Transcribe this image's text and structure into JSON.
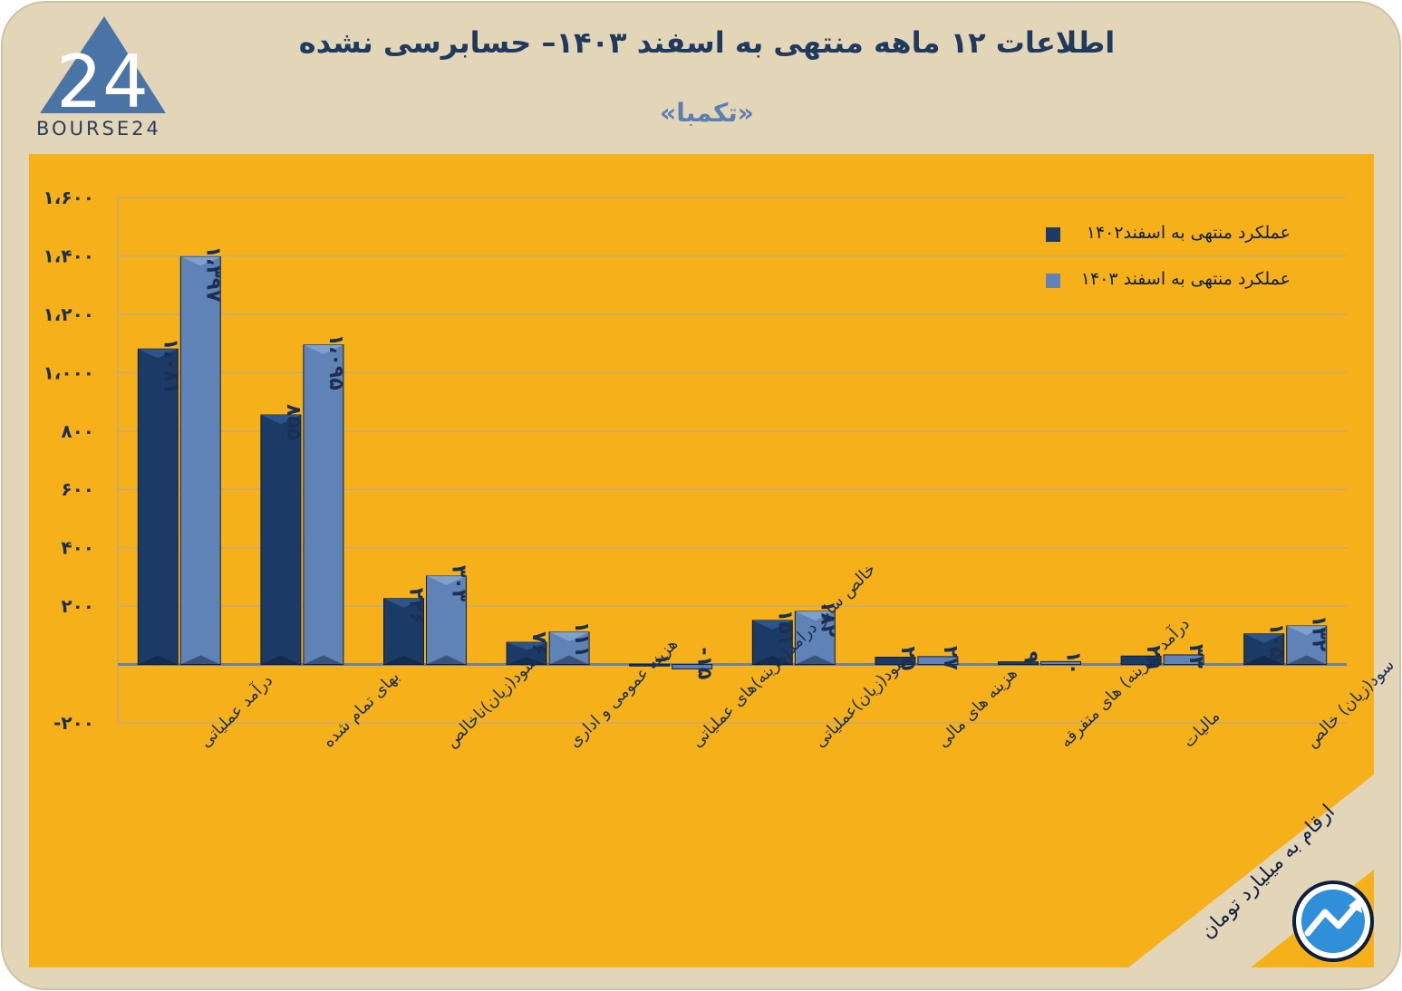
{
  "title": "اطلاعات ۱۲ ماهه منتهی به اسفند ۱۴۰۳– حسابرسی نشده",
  "subtitle": "«تکمبا»",
  "logo": {
    "text": "BOURSE24",
    "glyph": "24"
  },
  "note": "ارقام به میلیارد تومان",
  "colors": {
    "background": "#e3d6b8",
    "plot_panel": "#f6b01a",
    "series_1402": "#1b3a66",
    "series_1403": "#5f83b6",
    "grid": "#b8a98c",
    "axis_text": "#1b2f52",
    "zero_line": "#6c82a3"
  },
  "icons": {
    "corner_logo": "trend-arrow-icon",
    "brand_logo": "triangle-24-logo"
  },
  "chart_data": {
    "type": "bar",
    "categories": [
      "درآمد عملیاتی",
      "بهای تمام شده",
      "سود(زیان)ناخالص",
      "هزینه عمومی و اداری",
      "خالص سایر درامد(هزینه)های عملیاتی",
      "سود(زیان)عملیاتی",
      "هزینه های مالی",
      "درآمد (هزینه) های متفرقه",
      "مالیات",
      "سود(زیان) خالص"
    ],
    "series": [
      {
        "name": "عملکرد منتهی به اسفند۱۴۰۲",
        "values": [
          1081,
          855,
          226,
          76,
          1,
          151,
          25,
          9,
          29,
          105
        ],
        "labels": [
          "۱،۰۸۱",
          "۸۵۵",
          "۲۲۶",
          "۷۶",
          "۱",
          "۱۵۱",
          "۲۵",
          "۹",
          "۲۹",
          "۱۰۵"
        ]
      },
      {
        "name": "عملکرد منتهی به اسفند ۱۴۰۳",
        "values": [
          1397,
          1095,
          303,
          111,
          -15,
          182,
          27,
          10,
          33,
          132
        ],
        "labels": [
          "۱،۳۹۷",
          "۱،۰۹۵",
          "۳۰۳",
          "۱۱۱",
          "-۱۵",
          "۱۸۲",
          "۲۷",
          "۱۰",
          "۳۳",
          "۱۳۲"
        ]
      }
    ],
    "yticks": [
      -200,
      0,
      200,
      400,
      600,
      800,
      1000,
      1200,
      1400,
      1600
    ],
    "ytick_labels": [
      "-۲۰۰",
      "",
      "۲۰۰",
      "۴۰۰",
      "۶۰۰",
      "۸۰۰",
      "۱،۰۰۰",
      "۱،۲۰۰",
      "۱،۴۰۰",
      "۱،۶۰۰"
    ],
    "ylim": [
      -200,
      1600
    ],
    "grid": true,
    "legend": "top-right"
  }
}
